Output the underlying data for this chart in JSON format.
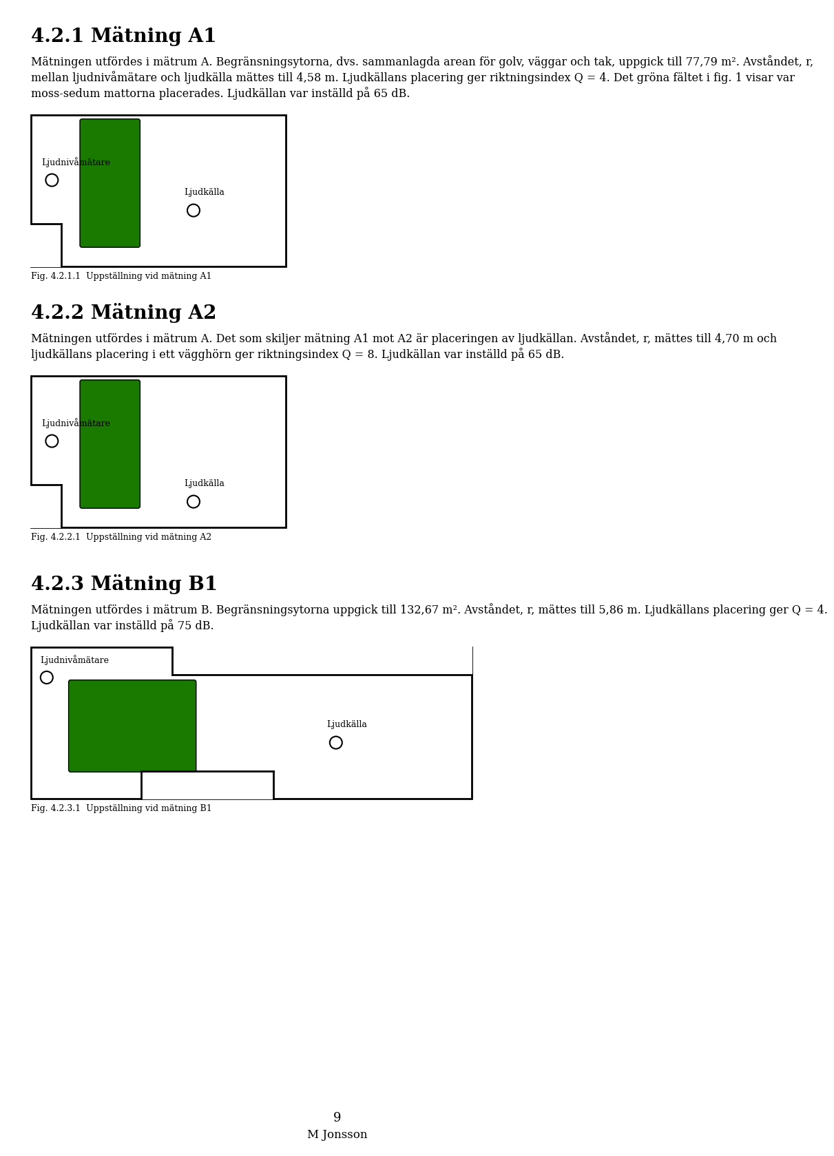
{
  "page_bg": "#ffffff",
  "text_color": "#000000",
  "green_color": "#1a7a00",
  "section1_heading": "4.2.1 Mätning A1",
  "section1_text": "Mätningen utfördes i mätrum A. Begränsningsytorna, dvs. sammanlagda arean för golv, väggar och tak, uppgick till 77,79 m². Avståndet, r, mellan ljudnivåmätare och ljudkälla mättes till 4,58 m. Ljudkällans placering ger riktningsindex Q = 4. Det gröna fältet i fig. 1 visar var moss-sedum mattorna placerades. Ljudkällan var inställd på 65 dB.",
  "section1_fig_caption": "Fig. 4.2.1.1  Uppställning vid mätning A1",
  "section2_heading": "4.2.2 Mätning A2",
  "section2_text": "Mätningen utfördes i mätrum A. Det som skiljer mätning A1 mot A2 är placeringen av ljudkällan. Avståndet, r, mättes till 4,70 m och ljudkällans placering i ett vägghörn ger riktningsindex Q = 8. Ljudkällan var inställd på 65 dB.",
  "section2_fig_caption": "Fig. 4.2.2.1  Uppställning vid mätning A2",
  "section3_heading": "4.2.3 Mätning B1",
  "section3_text": "Mätningen utfördes i mätrum B. Begränsningsytorna uppgick till 132,67 m². Avståndet, r, mättes till 5,86 m. Ljudkällans placering ger Q = 4. Ljudkällan var inställd på 75 dB.",
  "section3_fig_caption": "Fig. 4.2.3.1  Uppställning vid mätning B1",
  "page_number": "9",
  "footer_text": "M Jonsson"
}
